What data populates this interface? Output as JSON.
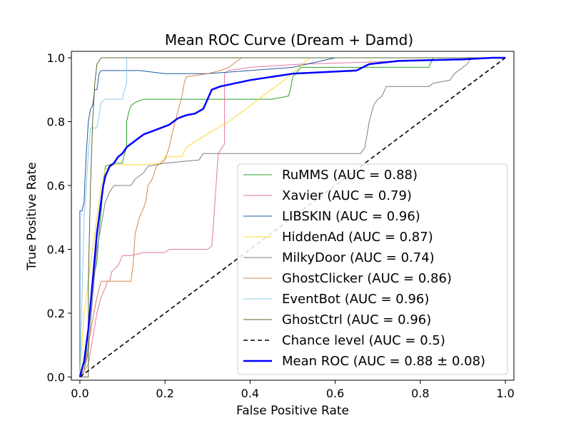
{
  "chart_data": {
    "type": "line",
    "title": "Mean ROC Curve (Dream + Damd)",
    "xlabel": "False Positive Rate",
    "ylabel": "True Positive Rate",
    "xlim": [
      -0.02,
      1.02
    ],
    "ylim": [
      -0.01,
      1.02
    ],
    "xticks": [
      "0.0",
      "0.2",
      "0.4",
      "0.6",
      "0.8",
      "1.0"
    ],
    "yticks": [
      "0.0",
      "0.2",
      "0.4",
      "0.6",
      "0.8",
      "1.0"
    ],
    "legend_position": "lower-right",
    "series": [
      {
        "name": "RuMMS (AUC = 0.88)",
        "color": "#2ca02c",
        "width": 1,
        "dash": "",
        "points": [
          [
            0,
            0
          ],
          [
            0.01,
            0.02
          ],
          [
            0.015,
            0.08
          ],
          [
            0.02,
            0.15
          ],
          [
            0.025,
            0.22
          ],
          [
            0.03,
            0.3
          ],
          [
            0.04,
            0.36
          ],
          [
            0.045,
            0.45
          ],
          [
            0.05,
            0.52
          ],
          [
            0.055,
            0.6
          ],
          [
            0.06,
            0.66
          ],
          [
            0.08,
            0.67
          ],
          [
            0.1,
            0.67
          ],
          [
            0.105,
            0.7
          ],
          [
            0.11,
            0.72
          ],
          [
            0.11,
            0.8
          ],
          [
            0.115,
            0.83
          ],
          [
            0.12,
            0.85
          ],
          [
            0.13,
            0.86
          ],
          [
            0.15,
            0.87
          ],
          [
            0.3,
            0.87
          ],
          [
            0.45,
            0.87
          ],
          [
            0.49,
            0.88
          ],
          [
            0.495,
            0.9
          ],
          [
            0.5,
            0.94
          ],
          [
            0.52,
            0.97
          ],
          [
            0.82,
            0.97
          ],
          [
            0.83,
            1.0
          ],
          [
            1.0,
            1.0
          ]
        ]
      },
      {
        "name": "Xavier (AUC = 0.79)",
        "color": "#e377a2",
        "width": 1,
        "dash": "",
        "points": [
          [
            0,
            0
          ],
          [
            0.01,
            0.02
          ],
          [
            0.02,
            0.04
          ],
          [
            0.03,
            0.12
          ],
          [
            0.04,
            0.2
          ],
          [
            0.05,
            0.25
          ],
          [
            0.06,
            0.28
          ],
          [
            0.065,
            0.3
          ],
          [
            0.07,
            0.3
          ],
          [
            0.075,
            0.33
          ],
          [
            0.09,
            0.35
          ],
          [
            0.1,
            0.38
          ],
          [
            0.12,
            0.38
          ],
          [
            0.15,
            0.39
          ],
          [
            0.19,
            0.39
          ],
          [
            0.2,
            0.39
          ],
          [
            0.21,
            0.4
          ],
          [
            0.3,
            0.4
          ],
          [
            0.31,
            0.41
          ],
          [
            0.315,
            0.5
          ],
          [
            0.32,
            0.6
          ],
          [
            0.325,
            0.7
          ],
          [
            0.33,
            0.71
          ],
          [
            0.335,
            0.72
          ],
          [
            0.34,
            0.73
          ],
          [
            0.34,
            0.95
          ],
          [
            0.35,
            0.96
          ],
          [
            0.4,
            0.97
          ],
          [
            0.52,
            0.98
          ],
          [
            1.0,
            1.0
          ]
        ]
      },
      {
        "name": "LIBSKIN (AUC = 0.96)",
        "color": "#1f5aa6",
        "width": 1,
        "dash": "",
        "points": [
          [
            0,
            0
          ],
          [
            0.0,
            0.52
          ],
          [
            0.005,
            0.52
          ],
          [
            0.01,
            0.55
          ],
          [
            0.012,
            0.62
          ],
          [
            0.015,
            0.7
          ],
          [
            0.02,
            0.8
          ],
          [
            0.025,
            0.84
          ],
          [
            0.03,
            0.85
          ],
          [
            0.035,
            0.9
          ],
          [
            0.04,
            0.9
          ],
          [
            0.045,
            0.95
          ],
          [
            0.05,
            0.96
          ],
          [
            0.06,
            0.96
          ],
          [
            0.1,
            0.96
          ],
          [
            0.14,
            0.96
          ],
          [
            0.2,
            0.95
          ],
          [
            0.3,
            0.95
          ],
          [
            0.5,
            0.97
          ],
          [
            0.6,
            1.0
          ],
          [
            1.0,
            1.0
          ]
        ]
      },
      {
        "name": "HiddenAd (AUC = 0.87)",
        "color": "#ffd732",
        "width": 1,
        "dash": "",
        "points": [
          [
            0,
            0
          ],
          [
            0.01,
            0.2
          ],
          [
            0.02,
            0.3
          ],
          [
            0.03,
            0.4
          ],
          [
            0.04,
            0.5
          ],
          [
            0.05,
            0.6
          ],
          [
            0.06,
            0.65
          ],
          [
            0.07,
            0.66
          ],
          [
            0.08,
            0.665
          ],
          [
            0.15,
            0.665
          ],
          [
            0.19,
            0.67
          ],
          [
            0.2,
            0.69
          ],
          [
            0.24,
            0.69
          ],
          [
            0.25,
            0.72
          ],
          [
            0.31,
            0.77
          ],
          [
            0.35,
            0.8
          ],
          [
            0.4,
            0.85
          ],
          [
            0.45,
            0.9
          ],
          [
            0.5,
            0.95
          ],
          [
            0.54,
            1.0
          ],
          [
            1.0,
            1.0
          ]
        ]
      },
      {
        "name": "MilkyDoor (AUC = 0.74)",
        "color": "#7f7f7f",
        "width": 1,
        "dash": "",
        "points": [
          [
            0,
            0
          ],
          [
            0.005,
            0.0
          ],
          [
            0.01,
            0.02
          ],
          [
            0.02,
            0.08
          ],
          [
            0.03,
            0.25
          ],
          [
            0.04,
            0.4
          ],
          [
            0.06,
            0.55
          ],
          [
            0.07,
            0.58
          ],
          [
            0.08,
            0.6
          ],
          [
            0.12,
            0.6
          ],
          [
            0.13,
            0.62
          ],
          [
            0.15,
            0.64
          ],
          [
            0.16,
            0.66
          ],
          [
            0.2,
            0.67
          ],
          [
            0.28,
            0.68
          ],
          [
            0.29,
            0.7
          ],
          [
            0.4,
            0.7
          ],
          [
            0.5,
            0.7
          ],
          [
            0.66,
            0.7
          ],
          [
            0.67,
            0.72
          ],
          [
            0.68,
            0.8
          ],
          [
            0.69,
            0.85
          ],
          [
            0.7,
            0.87
          ],
          [
            0.71,
            0.88
          ],
          [
            0.72,
            0.91
          ],
          [
            0.82,
            0.91
          ],
          [
            0.83,
            0.92
          ],
          [
            0.87,
            0.93
          ],
          [
            0.88,
            0.95
          ],
          [
            0.89,
            0.96
          ],
          [
            0.9,
            0.97
          ],
          [
            0.91,
            0.98
          ],
          [
            0.92,
            1.0
          ],
          [
            1.0,
            1.0
          ]
        ]
      },
      {
        "name": "GhostClicker (AUC = 0.86)",
        "color": "#d2884a",
        "width": 1,
        "dash": "",
        "points": [
          [
            0,
            0
          ],
          [
            0.01,
            0.02
          ],
          [
            0.02,
            0.1
          ],
          [
            0.03,
            0.18
          ],
          [
            0.04,
            0.25
          ],
          [
            0.05,
            0.3
          ],
          [
            0.06,
            0.3
          ],
          [
            0.07,
            0.3
          ],
          [
            0.12,
            0.3
          ],
          [
            0.125,
            0.35
          ],
          [
            0.13,
            0.45
          ],
          [
            0.14,
            0.5
          ],
          [
            0.15,
            0.53
          ],
          [
            0.155,
            0.55
          ],
          [
            0.16,
            0.6
          ],
          [
            0.17,
            0.62
          ],
          [
            0.18,
            0.66
          ],
          [
            0.19,
            0.67
          ],
          [
            0.2,
            0.68
          ],
          [
            0.21,
            0.72
          ],
          [
            0.22,
            0.78
          ],
          [
            0.23,
            0.83
          ],
          [
            0.24,
            0.88
          ],
          [
            0.245,
            0.92
          ],
          [
            0.25,
            0.94
          ],
          [
            0.3,
            0.95
          ],
          [
            0.33,
            0.96
          ],
          [
            0.35,
            0.97
          ],
          [
            0.36,
            0.98
          ],
          [
            0.38,
            1.0
          ],
          [
            1.0,
            1.0
          ]
        ]
      },
      {
        "name": "EventBot (AUC = 0.96)",
        "color": "#8ecae6",
        "width": 1,
        "dash": "",
        "points": [
          [
            0,
            0
          ],
          [
            0.01,
            0.5
          ],
          [
            0.015,
            0.6
          ],
          [
            0.02,
            0.7
          ],
          [
            0.025,
            0.78
          ],
          [
            0.04,
            0.78
          ],
          [
            0.05,
            0.86
          ],
          [
            0.06,
            0.87
          ],
          [
            0.1,
            0.87
          ],
          [
            0.105,
            0.9
          ],
          [
            0.11,
            0.92
          ],
          [
            0.11,
            1.0
          ],
          [
            1.0,
            1.0
          ]
        ]
      },
      {
        "name": "GhostCtrl (AUC = 0.96)",
        "color": "#556b2f",
        "width": 1,
        "dash": "",
        "points": [
          [
            0,
            0
          ],
          [
            0.005,
            0.0
          ],
          [
            0.01,
            0.0
          ],
          [
            0.02,
            0.0
          ],
          [
            0.02,
            0.3
          ],
          [
            0.025,
            0.6
          ],
          [
            0.03,
            0.8
          ],
          [
            0.035,
            0.92
          ],
          [
            0.04,
            0.98
          ],
          [
            0.05,
            1.0
          ],
          [
            0.06,
            1.0
          ],
          [
            1.0,
            1.0
          ]
        ]
      },
      {
        "name": "Chance level (AUC = 0.5)",
        "color": "#000000",
        "width": 1.6,
        "dash": "6,4",
        "points": [
          [
            0,
            0
          ],
          [
            1,
            1
          ]
        ]
      },
      {
        "name": "Mean ROC (AUC = 0.88 ± 0.08)",
        "color": "#0000ff",
        "width": 2.5,
        "dash": "",
        "label_color": "#c00000",
        "points": [
          [
            0,
            0
          ],
          [
            0.01,
            0.05
          ],
          [
            0.02,
            0.15
          ],
          [
            0.03,
            0.3
          ],
          [
            0.04,
            0.45
          ],
          [
            0.045,
            0.5
          ],
          [
            0.05,
            0.55
          ],
          [
            0.055,
            0.6
          ],
          [
            0.06,
            0.63
          ],
          [
            0.07,
            0.66
          ],
          [
            0.08,
            0.67
          ],
          [
            0.09,
            0.69
          ],
          [
            0.1,
            0.7
          ],
          [
            0.11,
            0.72
          ],
          [
            0.13,
            0.74
          ],
          [
            0.15,
            0.76
          ],
          [
            0.17,
            0.77
          ],
          [
            0.19,
            0.78
          ],
          [
            0.21,
            0.79
          ],
          [
            0.23,
            0.81
          ],
          [
            0.25,
            0.82
          ],
          [
            0.27,
            0.825
          ],
          [
            0.29,
            0.84
          ],
          [
            0.3,
            0.87
          ],
          [
            0.31,
            0.9
          ],
          [
            0.33,
            0.91
          ],
          [
            0.4,
            0.93
          ],
          [
            0.5,
            0.95
          ],
          [
            0.65,
            0.96
          ],
          [
            0.68,
            0.98
          ],
          [
            0.75,
            0.99
          ],
          [
            0.9,
            0.995
          ],
          [
            0.97,
            1.0
          ],
          [
            1.0,
            1.0
          ]
        ]
      }
    ]
  }
}
